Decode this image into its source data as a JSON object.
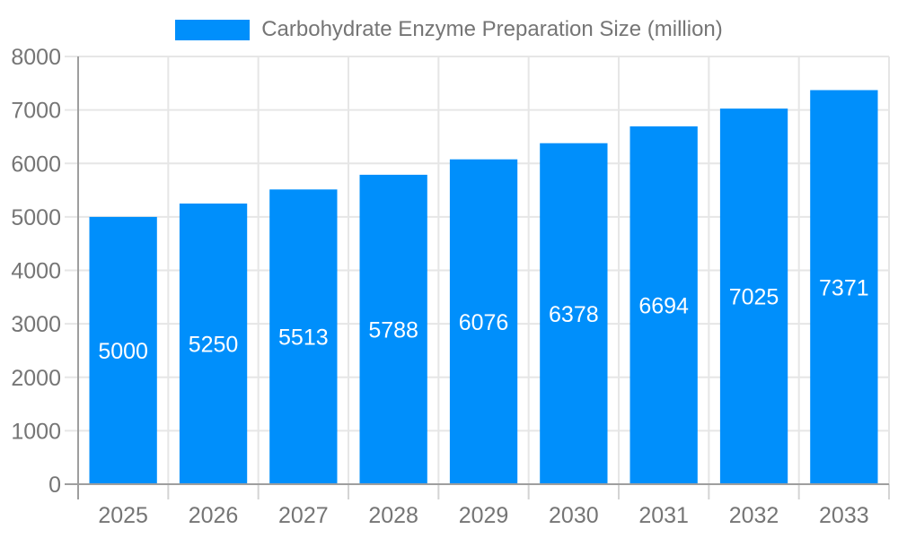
{
  "legend": {
    "label": "Carbohydrate Enzyme Preparation Size (million)"
  },
  "colors": {
    "bar": "#008FFB",
    "grid": "#e6e6e6",
    "axis": "#9e9e9e",
    "tick": "#d4d4d4",
    "axis_label": "#757575",
    "bar_label": "#ffffff",
    "background": "#ffffff"
  },
  "chart_data": {
    "type": "bar",
    "title": "Carbohydrate Enzyme Preparation Size (million)",
    "series": [
      {
        "name": "Carbohydrate Enzyme Preparation Size (million)",
        "values": [
          5000,
          5250,
          5513,
          5788,
          6076,
          6378,
          6694,
          7025,
          7371
        ]
      }
    ],
    "categories": [
      "2025",
      "2026",
      "2027",
      "2028",
      "2029",
      "2030",
      "2031",
      "2032",
      "2033"
    ],
    "xlabel": "",
    "ylabel": "",
    "ylim": [
      0,
      8000
    ],
    "ytick_step": 1000,
    "ytick_labels": [
      "0",
      "1000",
      "2000",
      "3000",
      "4000",
      "5000",
      "6000",
      "7000",
      "8000"
    ],
    "grid": true,
    "legend_position": "top",
    "data_labels": "inside-center"
  }
}
